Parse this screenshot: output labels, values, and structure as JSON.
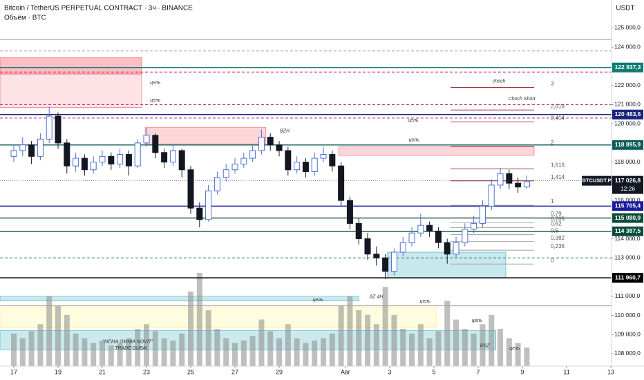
{
  "chart_data": {
    "type": "candlestick",
    "title": "Bitcoin / TetherUS PERPETUAL CONTRACT · 3ч · BINANCE",
    "subtitle": "Объём · BTC",
    "currency": "USDT",
    "up_color": "#4a6fd1",
    "down_color": "#131722",
    "volume_color": "#8a8a8a",
    "x": [
      0,
      0.4,
      0.8,
      1.2,
      1.6,
      2.0,
      2.4,
      2.8,
      3.2,
      3.6,
      4.0,
      4.4,
      4.8,
      5.2,
      5.6,
      6.0,
      6.4,
      6.8,
      7.2,
      7.6,
      8.0,
      8.4,
      8.8,
      9.2,
      9.6,
      10.0,
      10.4,
      10.8,
      11.2,
      11.6,
      12.0,
      12.4,
      12.8,
      13.2,
      13.6,
      14.0,
      14.4,
      14.8,
      15.2,
      15.6,
      16.0,
      16.4,
      16.8,
      17.2,
      17.6,
      18.0,
      18.4,
      18.8,
      19.2,
      19.6,
      20.0,
      20.4,
      20.8,
      21.2,
      21.6,
      22.0,
      22.4,
      22.8,
      23.2
    ],
    "open": [
      118300,
      118600,
      118900,
      118300,
      119200,
      120400,
      119000,
      117800,
      118200,
      117600,
      118000,
      118300,
      117900,
      118400,
      117800,
      119000,
      119400,
      118500,
      118000,
      118600,
      117600,
      115600,
      115000,
      116500,
      117200,
      117600,
      117900,
      118200,
      118600,
      119300,
      118900,
      118600,
      117600,
      118000,
      117500,
      118200,
      118400,
      117800,
      116000,
      114800,
      114000,
      113200,
      113000,
      112300,
      113300,
      113800,
      114300,
      114700,
      114400,
      113800,
      113200,
      113800,
      114500,
      114800,
      115700,
      116800,
      117400,
      116900,
      116700
    ],
    "high": [
      118900,
      119300,
      119100,
      119500,
      120900,
      120600,
      119200,
      118500,
      118400,
      118300,
      118600,
      118500,
      118700,
      118600,
      119200,
      119800,
      119500,
      118700,
      118900,
      118700,
      117800,
      115900,
      116800,
      117500,
      117900,
      118200,
      118500,
      118900,
      119700,
      119500,
      119100,
      118800,
      118300,
      118200,
      118500,
      118800,
      118600,
      118000,
      116200,
      115100,
      114300,
      113600,
      113200,
      113500,
      114100,
      114600,
      115300,
      114900,
      114600,
      114000,
      114100,
      114800,
      115200,
      116000,
      117100,
      117700,
      117600,
      117200,
      117300
    ],
    "low": [
      118000,
      118300,
      117900,
      118100,
      119000,
      118700,
      117400,
      117500,
      117300,
      117400,
      117800,
      117600,
      117700,
      117300,
      117700,
      118800,
      118200,
      117700,
      117800,
      117200,
      115300,
      114600,
      114900,
      116300,
      117000,
      117400,
      117700,
      118000,
      118400,
      118600,
      118300,
      117300,
      117400,
      117200,
      117300,
      118000,
      117500,
      115700,
      114500,
      113700,
      112900,
      112600,
      111900,
      112100,
      113100,
      113600,
      114100,
      114100,
      113500,
      112700,
      113000,
      113600,
      114300,
      114600,
      115500,
      116600,
      116600,
      116400,
      116600
    ],
    "close": [
      118600,
      118900,
      118300,
      119200,
      120400,
      119000,
      117800,
      118200,
      117600,
      118000,
      118300,
      117900,
      118400,
      117800,
      119000,
      119400,
      118500,
      118000,
      118600,
      117600,
      115600,
      115000,
      116500,
      117200,
      117600,
      117900,
      118200,
      118600,
      119300,
      118900,
      118600,
      117600,
      118000,
      117500,
      118200,
      118400,
      117800,
      116000,
      114800,
      114000,
      113200,
      113000,
      112300,
      113300,
      113800,
      114300,
      114700,
      114400,
      113800,
      113200,
      113800,
      114500,
      114800,
      115700,
      116800,
      117400,
      116900,
      116700,
      117000
    ],
    "volume": [
      14000,
      12000,
      15000,
      18000,
      30000,
      26000,
      22000,
      14000,
      12000,
      10000,
      11000,
      9000,
      10000,
      12000,
      16000,
      18000,
      15000,
      12000,
      11000,
      14000,
      32000,
      40000,
      24000,
      16000,
      12000,
      10000,
      11000,
      13000,
      20000,
      15000,
      12000,
      18000,
      12000,
      10000,
      11000,
      12000,
      14000,
      26000,
      30000,
      24000,
      22000,
      18000,
      34000,
      22000,
      16000,
      14000,
      18000,
      12000,
      15000,
      28000,
      20000,
      16000,
      14000,
      18000,
      22000,
      16000,
      12000,
      10000,
      8000
    ],
    "xlim": [
      -0.625,
      27.03
    ],
    "xticks": [
      {
        "value": 0,
        "label": "17"
      },
      {
        "value": 2,
        "label": "19"
      },
      {
        "value": 4,
        "label": "21"
      },
      {
        "value": 6,
        "label": "23"
      },
      {
        "value": 8,
        "label": "25"
      },
      {
        "value": 10,
        "label": "27"
      },
      {
        "value": 12,
        "label": "29"
      },
      {
        "value": 15,
        "label": "Авг"
      },
      {
        "value": 17,
        "label": "3"
      },
      {
        "value": 19,
        "label": "5"
      },
      {
        "value": 21,
        "label": "7"
      },
      {
        "value": 23,
        "label": "9"
      },
      {
        "value": 25,
        "label": "11"
      },
      {
        "value": 27,
        "label": "13"
      }
    ],
    "ylim": [
      107350,
      126460
    ],
    "yticks": [
      {
        "value": 125000,
        "label": "125 000,0"
      },
      {
        "value": 124000,
        "label": "124 000,0"
      },
      {
        "value": 123000,
        "label": "123 000,0"
      },
      {
        "value": 122000,
        "label": "122 000,0"
      },
      {
        "value": 121000,
        "label": "121 000,0"
      },
      {
        "value": 120000,
        "label": "120 000,0"
      },
      {
        "value": 119000,
        "label": "119 000,0"
      },
      {
        "value": 118000,
        "label": "118 000,0"
      },
      {
        "value": 116000,
        "label": "116 000,0"
      },
      {
        "value": 114000,
        "label": "114 000,0"
      },
      {
        "value": 113000,
        "label": "113 000,0"
      },
      {
        "value": 111000,
        "label": "111 000,0"
      },
      {
        "value": 110000,
        "label": "110 000,0"
      },
      {
        "value": 109000,
        "label": "109 000,0"
      },
      {
        "value": 108000,
        "label": "108 000,0"
      }
    ],
    "zones": [
      {
        "x1": -0.625,
        "x2": 5.78,
        "y1": 123450,
        "y2": 122600,
        "color": "rgba(242,54,69,0.32)"
      },
      {
        "x1": -0.625,
        "x2": 5.78,
        "y1": 122600,
        "y2": 120850,
        "color": "rgba(242,54,69,0.14)"
      },
      {
        "x1": 5.94,
        "x2": 11.4,
        "y1": 119800,
        "y2": 118950,
        "color": "rgba(242,54,69,0.2)"
      },
      {
        "x1": 14.69,
        "x2": 23.53,
        "y1": 118800,
        "y2": 118350,
        "color": "rgba(242,54,69,0.2)"
      },
      {
        "x1": 16.9,
        "x2": 22.25,
        "y1": 113300,
        "y2": 111950,
        "color": "rgba(0,151,167,0.22)"
      },
      {
        "x1": -0.625,
        "x2": 15.6,
        "y1": 111000,
        "y2": 110750,
        "color": "rgba(0,151,167,0.2)"
      },
      {
        "x1": -0.625,
        "x2": 19.1,
        "y1": 110400,
        "y2": 109350,
        "color": "rgba(255,235,59,0.16)"
      },
      {
        "x1": -0.625,
        "x2": 21.8,
        "y1": 109200,
        "y2": 108200,
        "color": "rgba(0,151,167,0.2)"
      }
    ],
    "lines": [
      {
        "price": 124400,
        "color": "#9e9e9e",
        "dash": false
      },
      {
        "price": 123800,
        "color": "#9e9e9e",
        "dash": true
      },
      {
        "price": 122700,
        "color": "#c2185b",
        "dash": true
      },
      {
        "price": 121000,
        "color": "#c2185b",
        "dash": true
      },
      {
        "price": 120300,
        "color": "#c2185b",
        "dash": true
      },
      {
        "price": 110500,
        "color": "#9e9e9e",
        "dash": false
      },
      {
        "price": 113000,
        "color": "#1b7a4a",
        "dash": true
      }
    ],
    "levels": [
      {
        "price": 122937.3,
        "label": "122 937,3",
        "color": "#0f7c74"
      },
      {
        "price": 120483.6,
        "label": "120 483,6",
        "color": "#1a237e"
      },
      {
        "price": 118895.9,
        "label": "118 895,9",
        "color": "#0b5e5a"
      },
      {
        "price": 115705.4,
        "label": "115 705,4",
        "color": "#1a1a9e"
      },
      {
        "price": 115080.9,
        "label": "115 080,9",
        "color": "#0b4d3a"
      },
      {
        "price": 114387.5,
        "label": "114 387,5",
        "color": "#0b4d3a"
      },
      {
        "price": 111960.7,
        "label": "111 960,7",
        "color": "#000000"
      }
    ],
    "last_price": {
      "price": 117026.8,
      "label": "117 026,8",
      "symbol": "BTCUSDT.P",
      "countdown": "12:26"
    },
    "fib": {
      "x1": 19.75,
      "x2": 23.53,
      "levels": [
        {
          "label": "3",
          "price": 121894
        },
        {
          "label": "2,618",
          "price": 120720
        },
        {
          "label": "2,414",
          "price": 120094
        },
        {
          "label": "2",
          "price": 118822
        },
        {
          "label": "1,616",
          "price": 117642
        },
        {
          "label": "1,414",
          "price": 117022
        },
        {
          "label": "1",
          "price": 115750
        },
        {
          "label": "0,79",
          "price": 115105
        },
        {
          "label": "0,705",
          "price": 114844
        },
        {
          "label": "0,62",
          "price": 114583
        },
        {
          "label": "0,5",
          "price": 114214
        },
        {
          "label": "0,382",
          "price": 113852
        },
        {
          "label": "0,236",
          "price": 113403
        },
        {
          "label": "0",
          "price": 112678
        }
      ]
    },
    "annotations": [
      {
        "text": "choch",
        "x": 21.94,
        "y": 122221
      },
      {
        "text": "Choch Short",
        "x": 22.97,
        "y": 121307
      },
      {
        "text": "цель",
        "x": 6.4,
        "y": 122148
      },
      {
        "text": "цель",
        "x": 6.4,
        "y": 121234
      },
      {
        "text": "цель",
        "x": 18.06,
        "y": 120174
      },
      {
        "text": "цель",
        "x": 18.1,
        "y": 119150
      },
      {
        "text": "цель",
        "x": 13.75,
        "y": 110814
      },
      {
        "text": "цель",
        "x": 18.6,
        "y": 110740
      },
      {
        "text": "цель",
        "x": 20.94,
        "y": 109716
      },
      {
        "text": "цель",
        "x": 22.65,
        "y": 108290
      },
      {
        "text": "BZH",
        "x": 12.25,
        "y": 119625
      },
      {
        "text": "8Z 4H",
        "x": 16.4,
        "y": 110960
      },
      {
        "text": "RBZ",
        "x": 21.3,
        "y": 108400
      },
      {
        "text": "\"NEMA OMNIA NOVIT\"",
        "x": 5.16,
        "y": 108620
      },
      {
        "text": "TRADE DUBAI",
        "x": 5.3,
        "y": 108290
      }
    ]
  }
}
